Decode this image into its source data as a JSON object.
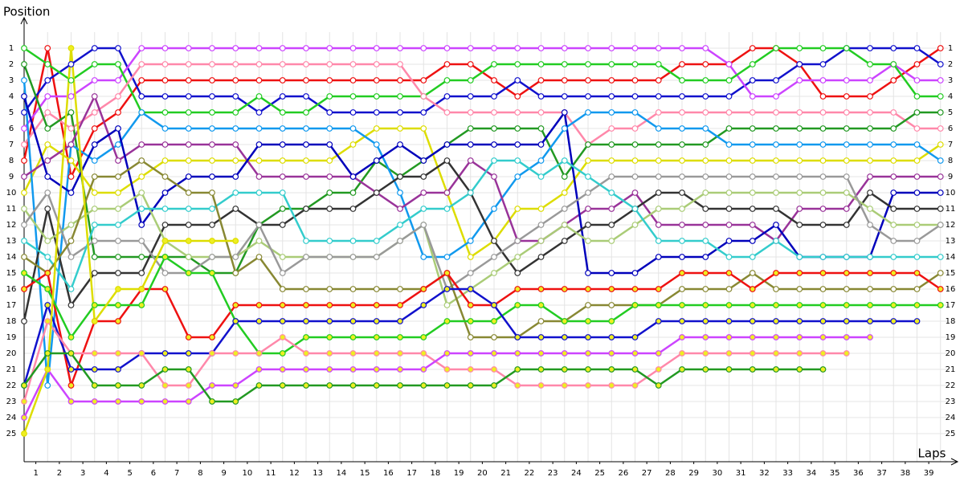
{
  "chart_data": {
    "type": "line",
    "title": "Position",
    "x_label": "Laps",
    "x": [
      0,
      1,
      2,
      3,
      4,
      5,
      6,
      7,
      8,
      9,
      10,
      11,
      12,
      13,
      14,
      15,
      16,
      17,
      18,
      19,
      20,
      21,
      22,
      23,
      24,
      25,
      26,
      27,
      28,
      29,
      30,
      31,
      32,
      33,
      34,
      35,
      36,
      37,
      38,
      39
    ],
    "xlim": [
      0,
      40
    ],
    "xticks": [
      {
        "value": 0.5,
        "label": "1"
      },
      {
        "value": 1.5,
        "label": "2"
      },
      {
        "value": 2.5,
        "label": "3"
      },
      {
        "value": 3.5,
        "label": "4"
      },
      {
        "value": 4.5,
        "label": "5"
      },
      {
        "value": 5.5,
        "label": "6"
      },
      {
        "value": 6.5,
        "label": "7"
      },
      {
        "value": 7.5,
        "label": "8"
      },
      {
        "value": 8.5,
        "label": "9"
      },
      {
        "value": 9.5,
        "label": "10"
      },
      {
        "value": 10.5,
        "label": "11"
      },
      {
        "value": 11.5,
        "label": "12"
      },
      {
        "value": 12.5,
        "label": "13"
      },
      {
        "value": 13.5,
        "label": "14"
      },
      {
        "value": 14.5,
        "label": "15"
      },
      {
        "value": 15.5,
        "label": "16"
      },
      {
        "value": 16.5,
        "label": "17"
      },
      {
        "value": 17.5,
        "label": "18"
      },
      {
        "value": 18.5,
        "label": "19"
      },
      {
        "value": 19.5,
        "label": "20"
      },
      {
        "value": 20.5,
        "label": "21"
      },
      {
        "value": 21.5,
        "label": "22"
      },
      {
        "value": 22.5,
        "label": "23"
      },
      {
        "value": 23.5,
        "label": "24"
      },
      {
        "value": 24.5,
        "label": "25"
      },
      {
        "value": 25.5,
        "label": "26"
      },
      {
        "value": 26.5,
        "label": "27"
      },
      {
        "value": 27.5,
        "label": "28"
      },
      {
        "value": 28.5,
        "label": "29"
      },
      {
        "value": 29.5,
        "label": "30"
      },
      {
        "value": 30.5,
        "label": "31"
      },
      {
        "value": 31.5,
        "label": "32"
      },
      {
        "value": 32.5,
        "label": "33"
      },
      {
        "value": 33.5,
        "label": "34"
      },
      {
        "value": 34.5,
        "label": "35"
      },
      {
        "value": 35.5,
        "label": "36"
      },
      {
        "value": 36.5,
        "label": "37"
      },
      {
        "value": 37.5,
        "label": "38"
      },
      {
        "value": 38.5,
        "label": "39"
      }
    ],
    "ylim": [
      27,
      -1
    ],
    "yticks": [
      1,
      2,
      3,
      4,
      5,
      6,
      7,
      8,
      9,
      10,
      11,
      12,
      13,
      14,
      15,
      16,
      17,
      18,
      19,
      20,
      21,
      22,
      23,
      24,
      25
    ],
    "grid": true,
    "series": [
      {
        "color": "#ee1111",
        "marker": "#ffffff",
        "values": [
          8,
          1,
          9,
          6,
          5,
          3,
          3,
          3,
          3,
          3,
          3,
          3,
          3,
          3,
          3,
          3,
          3,
          3,
          2,
          2,
          3,
          4,
          3,
          3,
          3,
          3,
          3,
          3,
          2,
          2,
          2,
          1,
          1,
          2,
          4,
          4,
          4,
          3,
          2,
          1
        ]
      },
      {
        "color": "#1111cc",
        "marker": "#ffffff",
        "values": [
          5,
          3,
          2,
          1,
          1,
          4,
          4,
          4,
          4,
          4,
          5,
          4,
          4,
          5,
          5,
          5,
          5,
          5,
          4,
          4,
          4,
          3,
          4,
          4,
          4,
          4,
          4,
          4,
          4,
          4,
          4,
          3,
          3,
          2,
          2,
          1,
          1,
          1,
          1,
          2
        ]
      },
      {
        "color": "#cc44ff",
        "marker": "#ffffff",
        "values": [
          6,
          4,
          4,
          3,
          3,
          1,
          1,
          1,
          1,
          1,
          1,
          1,
          1,
          1,
          1,
          1,
          1,
          1,
          1,
          1,
          1,
          1,
          1,
          1,
          1,
          1,
          1,
          1,
          1,
          1,
          2,
          4,
          4,
          3,
          3,
          3,
          3,
          2,
          3,
          3
        ]
      },
      {
        "color": "#22cc22",
        "marker": "#ffffff",
        "values": [
          1,
          2,
          3,
          2,
          2,
          5,
          5,
          5,
          5,
          5,
          4,
          5,
          5,
          4,
          4,
          4,
          4,
          4,
          3,
          3,
          2,
          2,
          2,
          2,
          2,
          2,
          2,
          2,
          3,
          3,
          3,
          2,
          1,
          1,
          1,
          1,
          2,
          2,
          4,
          4
        ]
      },
      {
        "color": "#ff88aa",
        "marker": "#ffffff",
        "values": [
          7,
          5,
          6,
          5,
          4,
          2,
          2,
          2,
          2,
          2,
          2,
          2,
          2,
          2,
          2,
          2,
          2,
          4,
          5,
          5,
          5,
          5,
          5,
          5,
          7,
          6,
          6,
          5,
          5,
          5,
          5,
          5,
          5,
          5,
          5,
          5,
          5,
          5,
          6,
          6
        ]
      },
      {
        "color": "#229922",
        "marker": "#ffffff",
        "values": [
          2,
          6,
          5,
          14,
          14,
          14,
          14,
          14,
          15,
          15,
          12,
          11,
          11,
          10,
          10,
          8,
          9,
          8,
          7,
          6,
          6,
          6,
          6,
          9,
          7,
          7,
          7,
          7,
          7,
          7,
          6,
          6,
          6,
          6,
          6,
          6,
          6,
          6,
          5,
          5
        ]
      },
      {
        "color": "#dddd00",
        "marker": "#ffffff",
        "values": [
          10,
          7,
          8,
          10,
          10,
          9,
          8,
          8,
          8,
          8,
          8,
          8,
          8,
          8,
          7,
          6,
          6,
          6,
          10,
          14,
          13,
          11,
          11,
          10,
          8,
          8,
          8,
          8,
          8,
          8,
          8,
          8,
          8,
          8,
          8,
          8,
          8,
          8,
          8,
          7
        ]
      },
      {
        "color": "#1199ee",
        "marker": "#ffffff",
        "values": [
          3,
          22,
          7,
          8,
          7,
          5,
          6,
          6,
          6,
          6,
          6,
          6,
          6,
          6,
          6,
          7,
          10,
          14,
          14,
          13,
          11,
          9,
          8,
          6,
          5,
          5,
          5,
          6,
          6,
          6,
          7,
          7,
          7,
          7,
          7,
          7,
          7,
          7,
          7,
          8
        ]
      },
      {
        "color": "#993399",
        "marker": "#ffffff",
        "values": [
          9,
          8,
          7,
          4,
          8,
          7,
          7,
          7,
          7,
          7,
          9,
          9,
          9,
          9,
          9,
          10,
          11,
          10,
          10,
          8,
          9,
          13,
          13,
          12,
          11,
          11,
          10,
          12,
          12,
          12,
          12,
          12,
          13,
          11,
          11,
          11,
          9,
          9,
          9,
          9
        ]
      },
      {
        "color": "#0000bb",
        "marker": "#ffffff",
        "values": [
          4,
          9,
          10,
          7,
          6,
          12,
          10,
          9,
          9,
          9,
          7,
          7,
          7,
          7,
          9,
          8,
          7,
          8,
          7,
          7,
          7,
          7,
          7,
          5,
          15,
          15,
          15,
          14,
          14,
          14,
          13,
          13,
          12,
          14,
          14,
          14,
          14,
          10,
          10,
          10
        ]
      },
      {
        "color": "#333333",
        "marker": "#ffffff",
        "values": [
          18,
          11,
          17,
          15,
          15,
          15,
          12,
          12,
          12,
          11,
          12,
          12,
          11,
          11,
          11,
          10,
          9,
          9,
          8,
          10,
          13,
          15,
          14,
          13,
          12,
          12,
          11,
          10,
          10,
          11,
          11,
          11,
          11,
          12,
          12,
          12,
          10,
          11,
          11,
          11
        ]
      },
      {
        "color": "#aacc77",
        "marker": "#ffffff",
        "values": [
          11,
          13,
          12,
          11,
          11,
          10,
          13,
          14,
          14,
          14,
          13,
          14,
          14,
          14,
          14,
          14,
          13,
          12,
          17,
          16,
          15,
          14,
          13,
          12,
          13,
          13,
          12,
          11,
          11,
          10,
          10,
          10,
          10,
          10,
          10,
          10,
          11,
          12,
          12,
          12
        ]
      },
      {
        "color": "#999999",
        "marker": "#ffffff",
        "values": [
          12,
          10,
          14,
          13,
          13,
          13,
          15,
          15,
          14,
          14,
          12,
          15,
          14,
          14,
          14,
          14,
          13,
          12,
          16,
          15,
          14,
          13,
          12,
          11,
          10,
          9,
          9,
          9,
          9,
          9,
          9,
          9,
          9,
          9,
          9,
          9,
          12,
          13,
          13,
          12
        ]
      },
      {
        "color": "#33cccc",
        "marker": "#ffffff",
        "values": [
          13,
          14,
          16,
          12,
          12,
          11,
          11,
          11,
          11,
          10,
          10,
          10,
          13,
          13,
          13,
          13,
          12,
          11,
          11,
          10,
          8,
          8,
          9,
          8,
          9,
          10,
          11,
          13,
          13,
          13,
          14,
          14,
          13,
          14,
          14,
          14,
          14,
          14,
          14,
          14
        ]
      },
      {
        "color": "#888833",
        "marker": "#ffffff",
        "values": [
          14,
          15,
          13,
          9,
          9,
          8,
          9,
          10,
          10,
          15,
          14,
          16,
          16,
          16,
          16,
          16,
          16,
          16,
          15,
          19,
          19,
          19,
          18,
          18,
          17,
          17,
          17,
          17,
          16,
          16,
          16,
          15,
          16,
          16,
          16,
          16,
          16,
          16,
          16,
          15
        ]
      },
      {
        "color": "#ee1111",
        "marker": "#eeee22",
        "values": [
          16,
          15,
          22,
          18,
          18,
          16,
          16,
          19,
          19,
          17,
          17,
          17,
          17,
          17,
          17,
          17,
          17,
          16,
          15,
          17,
          17,
          16,
          16,
          16,
          16,
          16,
          16,
          16,
          15,
          15,
          15,
          16,
          15,
          15,
          15,
          15,
          15,
          15,
          15,
          16
        ]
      },
      {
        "color": "#22cc22",
        "marker": "#eeee22",
        "values": [
          15,
          16,
          19,
          17,
          17,
          17,
          14,
          15,
          15,
          18,
          20,
          20,
          19,
          19,
          19,
          19,
          19,
          19,
          18,
          18,
          18,
          17,
          17,
          18,
          18,
          18,
          17,
          17,
          17,
          17,
          17,
          17,
          17,
          17,
          17,
          17,
          17,
          17,
          17,
          17
        ]
      },
      {
        "color": "#1111cc",
        "marker": "#eeee22",
        "values": [
          22,
          17,
          21,
          21,
          21,
          20,
          20,
          20,
          20,
          18,
          18,
          18,
          18,
          18,
          18,
          18,
          18,
          17,
          16,
          16,
          17,
          19,
          19,
          19,
          19,
          19,
          19,
          18,
          18,
          18,
          18,
          18,
          18,
          18,
          18,
          18,
          18,
          18,
          18,
          null
        ]
      },
      {
        "color": "#ff88aa",
        "marker": "#eeee22",
        "values": [
          23,
          18,
          20,
          20,
          20,
          20,
          22,
          22,
          20,
          20,
          20,
          19,
          20,
          20,
          20,
          20,
          20,
          20,
          21,
          21,
          21,
          22,
          22,
          22,
          22,
          22,
          22,
          21,
          20,
          20,
          20,
          20,
          20,
          20,
          20,
          20,
          null,
          null,
          null,
          null
        ]
      },
      {
        "color": "#cc44ff",
        "marker": "#eeee22",
        "values": [
          24,
          21,
          23,
          23,
          23,
          23,
          23,
          23,
          22,
          22,
          21,
          21,
          21,
          21,
          21,
          21,
          21,
          21,
          20,
          20,
          20,
          20,
          20,
          20,
          20,
          20,
          20,
          20,
          19,
          19,
          19,
          19,
          19,
          19,
          19,
          19,
          19,
          null,
          null,
          null
        ]
      },
      {
        "color": "#229922",
        "marker": "#eeee22",
        "values": [
          22,
          20,
          20,
          22,
          22,
          22,
          21,
          21,
          23,
          23,
          22,
          22,
          22,
          22,
          22,
          22,
          22,
          22,
          22,
          22,
          22,
          21,
          21,
          21,
          21,
          21,
          21,
          22,
          21,
          21,
          21,
          21,
          21,
          21,
          21,
          null,
          null,
          null,
          null,
          null
        ]
      },
      {
        "color": "#dddd00",
        "marker": "#eeee22",
        "values": [
          25,
          21,
          1,
          18,
          16,
          16,
          13,
          13,
          13,
          13,
          null,
          null,
          null,
          null,
          null,
          null,
          null,
          null,
          null,
          null,
          null,
          null,
          null,
          null,
          null,
          null,
          null,
          null,
          null,
          null,
          null,
          null,
          null,
          null,
          null,
          null,
          null,
          null,
          null,
          null
        ]
      }
    ]
  }
}
